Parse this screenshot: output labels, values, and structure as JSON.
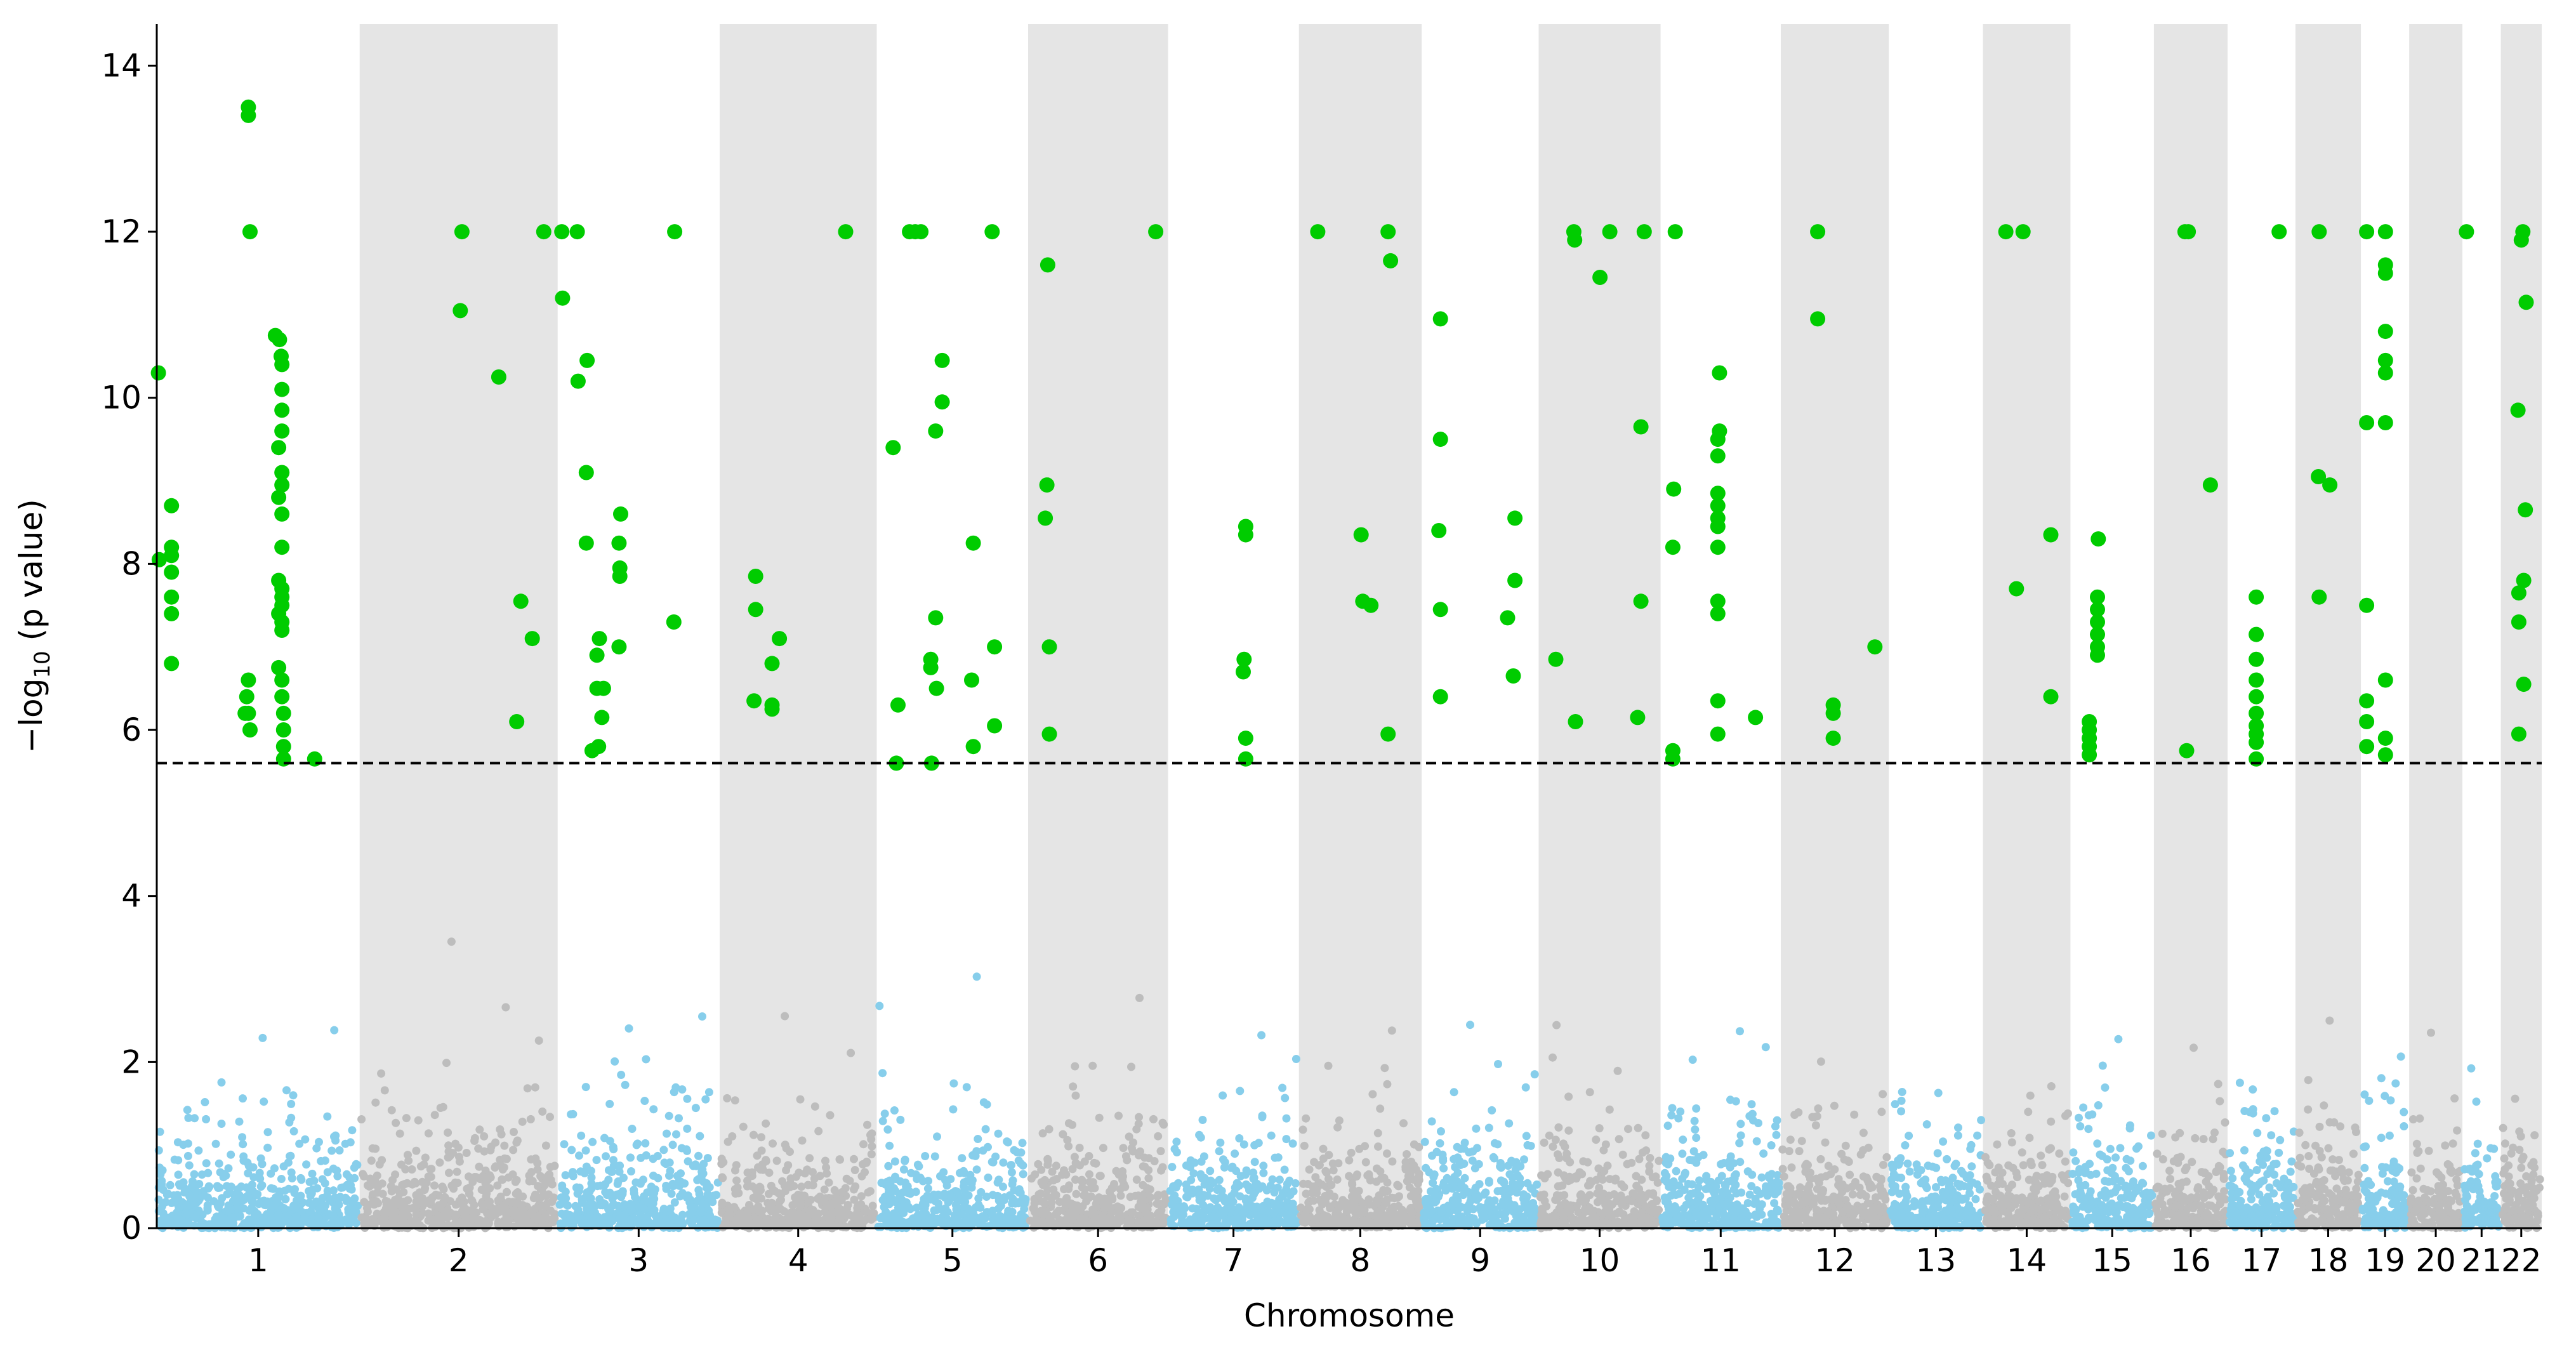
{
  "chart_data": {
    "type": "scatter",
    "subtype": "manhattan",
    "title": "",
    "xlabel": "Chromosome",
    "ylabel_main": "−log",
    "ylabel_sub": "10",
    "ylabel_rest": " (p value)",
    "ylim": [
      0,
      14.5
    ],
    "yticks": [
      0,
      2,
      4,
      6,
      8,
      10,
      12,
      14
    ],
    "threshold": 5.6,
    "colors": {
      "odd_points": "#87ceeb",
      "even_points": "#bdbdbd",
      "significant": "#00cc00",
      "band": "#e5e5e5",
      "threshold_line": "#000000"
    },
    "chromosomes": [
      {
        "label": "1",
        "span": [
          0,
          248
        ],
        "sig": [
          [
            2,
            10.3
          ],
          [
            -9,
            8.05
          ],
          [
            18,
            8.7
          ],
          [
            18,
            8.2
          ],
          [
            18,
            8.1
          ],
          [
            18,
            7.9
          ],
          [
            18,
            7.6
          ],
          [
            18,
            7.4
          ],
          [
            18,
            6.8
          ],
          [
            112,
            13.5
          ],
          [
            112,
            13.4
          ],
          [
            114,
            12.0
          ],
          [
            108,
            6.2
          ],
          [
            110,
            6.4
          ],
          [
            112,
            6.6
          ],
          [
            114,
            6.0
          ],
          [
            112,
            6.2
          ],
          [
            145,
            10.75
          ],
          [
            150,
            10.7
          ],
          [
            152,
            10.5
          ],
          [
            153,
            10.4
          ],
          [
            153,
            10.1
          ],
          [
            153,
            9.85
          ],
          [
            153,
            9.6
          ],
          [
            149,
            9.4
          ],
          [
            153,
            9.1
          ],
          [
            153,
            8.95
          ],
          [
            149,
            8.8
          ],
          [
            153,
            8.6
          ],
          [
            153,
            8.2
          ],
          [
            149,
            7.8
          ],
          [
            153,
            7.7
          ],
          [
            153,
            7.6
          ],
          [
            153,
            7.5
          ],
          [
            149,
            7.4
          ],
          [
            153,
            7.3
          ],
          [
            153,
            7.2
          ],
          [
            149,
            6.75
          ],
          [
            153,
            6.6
          ],
          [
            153,
            6.4
          ],
          [
            155,
            6.2
          ],
          [
            155,
            6.0
          ],
          [
            155,
            5.8
          ],
          [
            155,
            5.65
          ],
          [
            193,
            5.65
          ]
        ]
      },
      {
        "label": "2",
        "span": [
          248,
          490
        ],
        "sig": [
          [
            373,
            12.0
          ],
          [
            473,
            12.0
          ],
          [
            371,
            11.05
          ],
          [
            418,
            10.25
          ],
          [
            445,
            7.55
          ],
          [
            459,
            7.1
          ],
          [
            440,
            6.1
          ]
        ]
      },
      {
        "label": "3",
        "span": [
          490,
          688
        ],
        "sig": [
          [
            495,
            12.0
          ],
          [
            514,
            12.0
          ],
          [
            633,
            12.0
          ],
          [
            496,
            11.2
          ],
          [
            515,
            10.2
          ],
          [
            526,
            10.45
          ],
          [
            525,
            9.1
          ],
          [
            525,
            8.25
          ],
          [
            567,
            8.6
          ],
          [
            565,
            8.25
          ],
          [
            566,
            7.95
          ],
          [
            566,
            7.85
          ],
          [
            632,
            7.3
          ],
          [
            541,
            7.1
          ],
          [
            538,
            6.9
          ],
          [
            565,
            7.0
          ],
          [
            538,
            6.5
          ],
          [
            546,
            6.5
          ],
          [
            544,
            6.15
          ],
          [
            532,
            5.75
          ],
          [
            540,
            5.8
          ]
        ]
      },
      {
        "label": "4",
        "span": [
          688,
          880
        ],
        "sig": [
          [
            842,
            12.0
          ],
          [
            732,
            7.85
          ],
          [
            732,
            7.45
          ],
          [
            761,
            7.1
          ],
          [
            752,
            6.8
          ],
          [
            730,
            6.35
          ],
          [
            752,
            6.3
          ],
          [
            752,
            6.25
          ]
        ]
      },
      {
        "label": "5",
        "span": [
          880,
          1065
        ],
        "sig": [
          [
            920,
            12.0
          ],
          [
            927,
            12.0
          ],
          [
            934,
            12.0
          ],
          [
            1021,
            12.0
          ],
          [
            960,
            10.45
          ],
          [
            960,
            9.95
          ],
          [
            952,
            9.6
          ],
          [
            900,
            9.4
          ],
          [
            998,
            8.25
          ],
          [
            952,
            7.35
          ],
          [
            1024,
            7.0
          ],
          [
            946,
            6.85
          ],
          [
            946,
            6.75
          ],
          [
            906,
            6.3
          ],
          [
            996,
            6.6
          ],
          [
            953,
            6.5
          ],
          [
            1024,
            6.05
          ],
          [
            998,
            5.8
          ],
          [
            904,
            5.6
          ],
          [
            947,
            5.6
          ]
        ]
      },
      {
        "label": "6",
        "span": [
          1065,
          1236
        ],
        "sig": [
          [
            1221,
            12.0
          ],
          [
            1089,
            11.6
          ],
          [
            1088,
            8.95
          ],
          [
            1086,
            8.55
          ],
          [
            1091,
            7.0
          ],
          [
            1091,
            5.95
          ]
        ]
      },
      {
        "label": "7",
        "span": [
          1236,
          1396
        ],
        "sig": [
          [
            1331,
            8.45
          ],
          [
            1331,
            8.35
          ],
          [
            1329,
            6.85
          ],
          [
            1328,
            6.7
          ],
          [
            1331,
            5.9
          ],
          [
            1331,
            5.65
          ]
        ]
      },
      {
        "label": "8",
        "span": [
          1396,
          1546
        ],
        "sig": [
          [
            1419,
            12.0
          ],
          [
            1505,
            12.0
          ],
          [
            1508,
            11.65
          ],
          [
            1472,
            8.35
          ],
          [
            1474,
            7.55
          ],
          [
            1484,
            7.5
          ],
          [
            1505,
            5.95
          ]
        ]
      },
      {
        "label": "9",
        "span": [
          1546,
          1689
        ],
        "sig": [
          [
            1569,
            10.95
          ],
          [
            1569,
            9.5
          ],
          [
            1567,
            8.4
          ],
          [
            1660,
            8.55
          ],
          [
            1569,
            7.45
          ],
          [
            1660,
            7.8
          ],
          [
            1651,
            7.35
          ],
          [
            1658,
            6.65
          ],
          [
            1569,
            6.4
          ]
        ]
      },
      {
        "label": "10",
        "span": [
          1689,
          1838
        ],
        "sig": [
          [
            1732,
            12.0
          ],
          [
            1776,
            12.0
          ],
          [
            1818,
            12.0
          ],
          [
            1733,
            11.9
          ],
          [
            1764,
            11.45
          ],
          [
            1814,
            9.65
          ],
          [
            1814,
            7.55
          ],
          [
            1710,
            6.85
          ],
          [
            1734,
            6.1
          ],
          [
            1810,
            6.15
          ]
        ]
      },
      {
        "label": "11",
        "span": [
          1838,
          1985
        ],
        "sig": [
          [
            1856,
            12.0
          ],
          [
            1910,
            10.3
          ],
          [
            1910,
            9.6
          ],
          [
            1908,
            9.5
          ],
          [
            1908,
            9.3
          ],
          [
            1854,
            8.9
          ],
          [
            1908,
            8.85
          ],
          [
            1908,
            8.7
          ],
          [
            1908,
            8.55
          ],
          [
            1908,
            8.45
          ],
          [
            1853,
            8.2
          ],
          [
            1908,
            8.2
          ],
          [
            1908,
            7.55
          ],
          [
            1908,
            7.4
          ],
          [
            1908,
            6.35
          ],
          [
            1954,
            6.15
          ],
          [
            1908,
            5.95
          ],
          [
            1853,
            5.75
          ],
          [
            1853,
            5.65
          ]
        ]
      },
      {
        "label": "12",
        "span": [
          1985,
          2117
        ],
        "sig": [
          [
            2030,
            12.0
          ],
          [
            2030,
            10.95
          ],
          [
            2100,
            7.0
          ],
          [
            2049,
            6.3
          ],
          [
            2049,
            6.2
          ],
          [
            2049,
            5.9
          ]
        ]
      },
      {
        "label": "13",
        "span": [
          2117,
          2232
        ],
        "sig": []
      },
      {
        "label": "14",
        "span": [
          2232,
          2339
        ],
        "sig": [
          [
            2260,
            12.0
          ],
          [
            2281,
            12.0
          ],
          [
            2273,
            7.7
          ],
          [
            2315,
            8.35
          ],
          [
            2315,
            6.4
          ]
        ]
      },
      {
        "label": "15",
        "span": [
          2339,
          2441
        ],
        "sig": [
          [
            2373,
            8.3
          ],
          [
            2372,
            7.6
          ],
          [
            2372,
            7.45
          ],
          [
            2372,
            7.3
          ],
          [
            2372,
            7.15
          ],
          [
            2372,
            7.0
          ],
          [
            2372,
            6.9
          ],
          [
            2362,
            6.1
          ],
          [
            2362,
            6.0
          ],
          [
            2362,
            5.9
          ],
          [
            2362,
            5.8
          ],
          [
            2362,
            5.7
          ]
        ]
      },
      {
        "label": "16",
        "span": [
          2441,
          2531
        ],
        "sig": [
          [
            2479,
            12.0
          ],
          [
            2483,
            12.0
          ],
          [
            2510,
            8.95
          ],
          [
            2481,
            5.75
          ]
        ]
      },
      {
        "label": "17",
        "span": [
          2531,
          2614
        ],
        "sig": [
          [
            2594,
            12.0
          ],
          [
            2566,
            7.6
          ],
          [
            2566,
            7.15
          ],
          [
            2566,
            6.85
          ],
          [
            2566,
            6.6
          ],
          [
            2566,
            6.4
          ],
          [
            2566,
            6.2
          ],
          [
            2566,
            6.05
          ],
          [
            2566,
            5.95
          ],
          [
            2566,
            5.85
          ],
          [
            2566,
            5.65
          ]
        ]
      },
      {
        "label": "18",
        "span": [
          2614,
          2694
        ],
        "sig": [
          [
            2643,
            12.0
          ],
          [
            2642,
            9.05
          ],
          [
            2656,
            8.95
          ],
          [
            2643,
            7.6
          ]
        ]
      },
      {
        "label": "19",
        "span": [
          2694,
          2753
        ],
        "sig": [
          [
            2701,
            12.0
          ],
          [
            2724,
            12.0
          ],
          [
            2724,
            11.6
          ],
          [
            2724,
            11.5
          ],
          [
            2724,
            10.8
          ],
          [
            2724,
            10.45
          ],
          [
            2724,
            10.3
          ],
          [
            2701,
            9.7
          ],
          [
            2724,
            9.7
          ],
          [
            2701,
            7.5
          ],
          [
            2724,
            6.6
          ],
          [
            2701,
            6.35
          ],
          [
            2701,
            6.1
          ],
          [
            2724,
            5.9
          ],
          [
            2701,
            5.8
          ],
          [
            2724,
            5.7
          ]
        ]
      },
      {
        "label": "20",
        "span": [
          2753,
          2818
        ],
        "sig": []
      },
      {
        "label": "21",
        "span": [
          2818,
          2865
        ],
        "sig": [
          [
            2823,
            12.0
          ]
        ]
      },
      {
        "label": "22",
        "span": [
          2865,
          2915
        ],
        "sig": [
          [
            2892,
            12.0
          ],
          [
            2890,
            11.9
          ],
          [
            2896,
            11.15
          ],
          [
            2886,
            9.85
          ],
          [
            2895,
            8.65
          ],
          [
            2893,
            7.8
          ],
          [
            2887,
            7.65
          ],
          [
            2887,
            7.3
          ],
          [
            2893,
            6.55
          ],
          [
            2887,
            5.95
          ]
        ]
      }
    ]
  }
}
